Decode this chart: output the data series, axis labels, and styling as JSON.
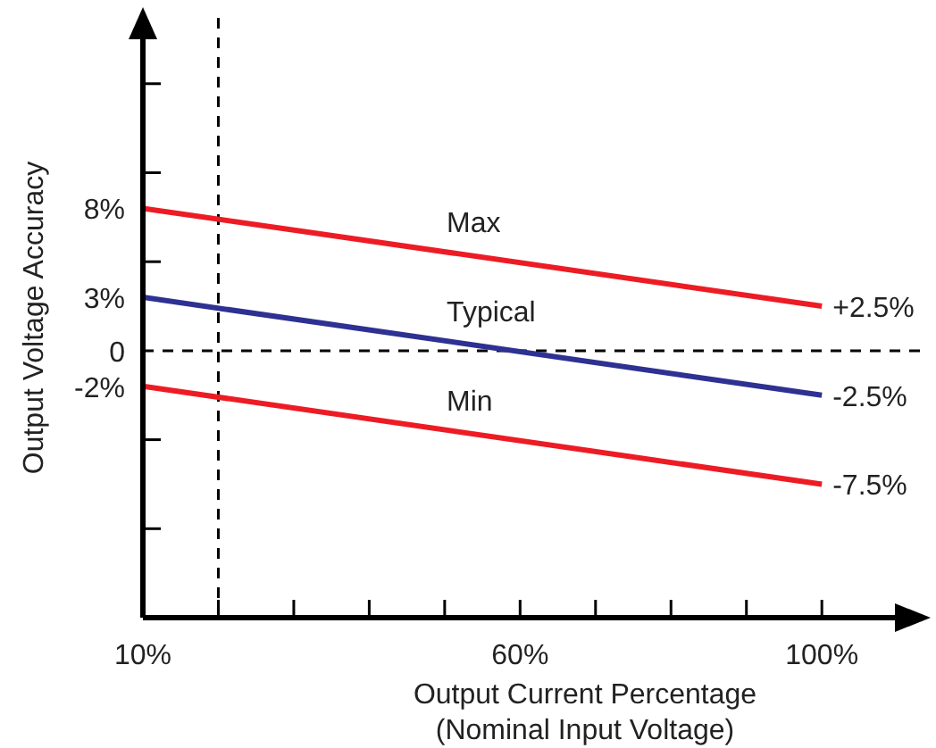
{
  "chart_data": {
    "type": "line",
    "xlabel": "Output Current Percentage\n(Nominal Input Voltage)",
    "ylabel": "Output Voltage Accuracy",
    "x": [
      10,
      100
    ],
    "series": [
      {
        "name": "Max",
        "color": "#ed1c24",
        "values": [
          8,
          2.5
        ],
        "value_labels": [
          null,
          "+2.5%"
        ]
      },
      {
        "name": "Typical",
        "color": "#2e3192",
        "values": [
          3,
          -2.5
        ],
        "value_labels": [
          null,
          "-2.5%"
        ]
      },
      {
        "name": "Min",
        "color": "#ed1c24",
        "values": [
          -2,
          -7.5
        ],
        "value_labels": [
          null,
          "-7.5%"
        ]
      }
    ],
    "xlim": [
      10,
      113
    ],
    "ylim": [
      -15,
      18.7
    ],
    "xticks": [
      {
        "value": 10,
        "label": "10%"
      },
      {
        "value": 20,
        "label": null
      },
      {
        "value": 30,
        "label": null
      },
      {
        "value": 40,
        "label": null
      },
      {
        "value": 50,
        "label": null
      },
      {
        "value": 60,
        "label": "60%"
      },
      {
        "value": 70,
        "label": null
      },
      {
        "value": 80,
        "label": null
      },
      {
        "value": 90,
        "label": null
      },
      {
        "value": 100,
        "label": "100%"
      }
    ],
    "yticks": [
      {
        "value": 15,
        "label": null
      },
      {
        "value": 10,
        "label": null
      },
      {
        "value": 8,
        "label": "8%"
      },
      {
        "value": 5,
        "label": null
      },
      {
        "value": 3,
        "label": "3%"
      },
      0,
      {
        "value": -2,
        "label": "-2%"
      },
      {
        "value": -5,
        "label": null
      },
      {
        "value": -10,
        "label": null
      }
    ],
    "ref_lines": [
      {
        "axis": "y",
        "value": 0,
        "color": "#000000",
        "line_style": "dashed"
      },
      {
        "axis": "x",
        "value": 20,
        "color": "#000000",
        "line_style": "dashed"
      }
    ],
    "grid": false,
    "legend": false,
    "marker": "none",
    "line_style": "solid"
  }
}
